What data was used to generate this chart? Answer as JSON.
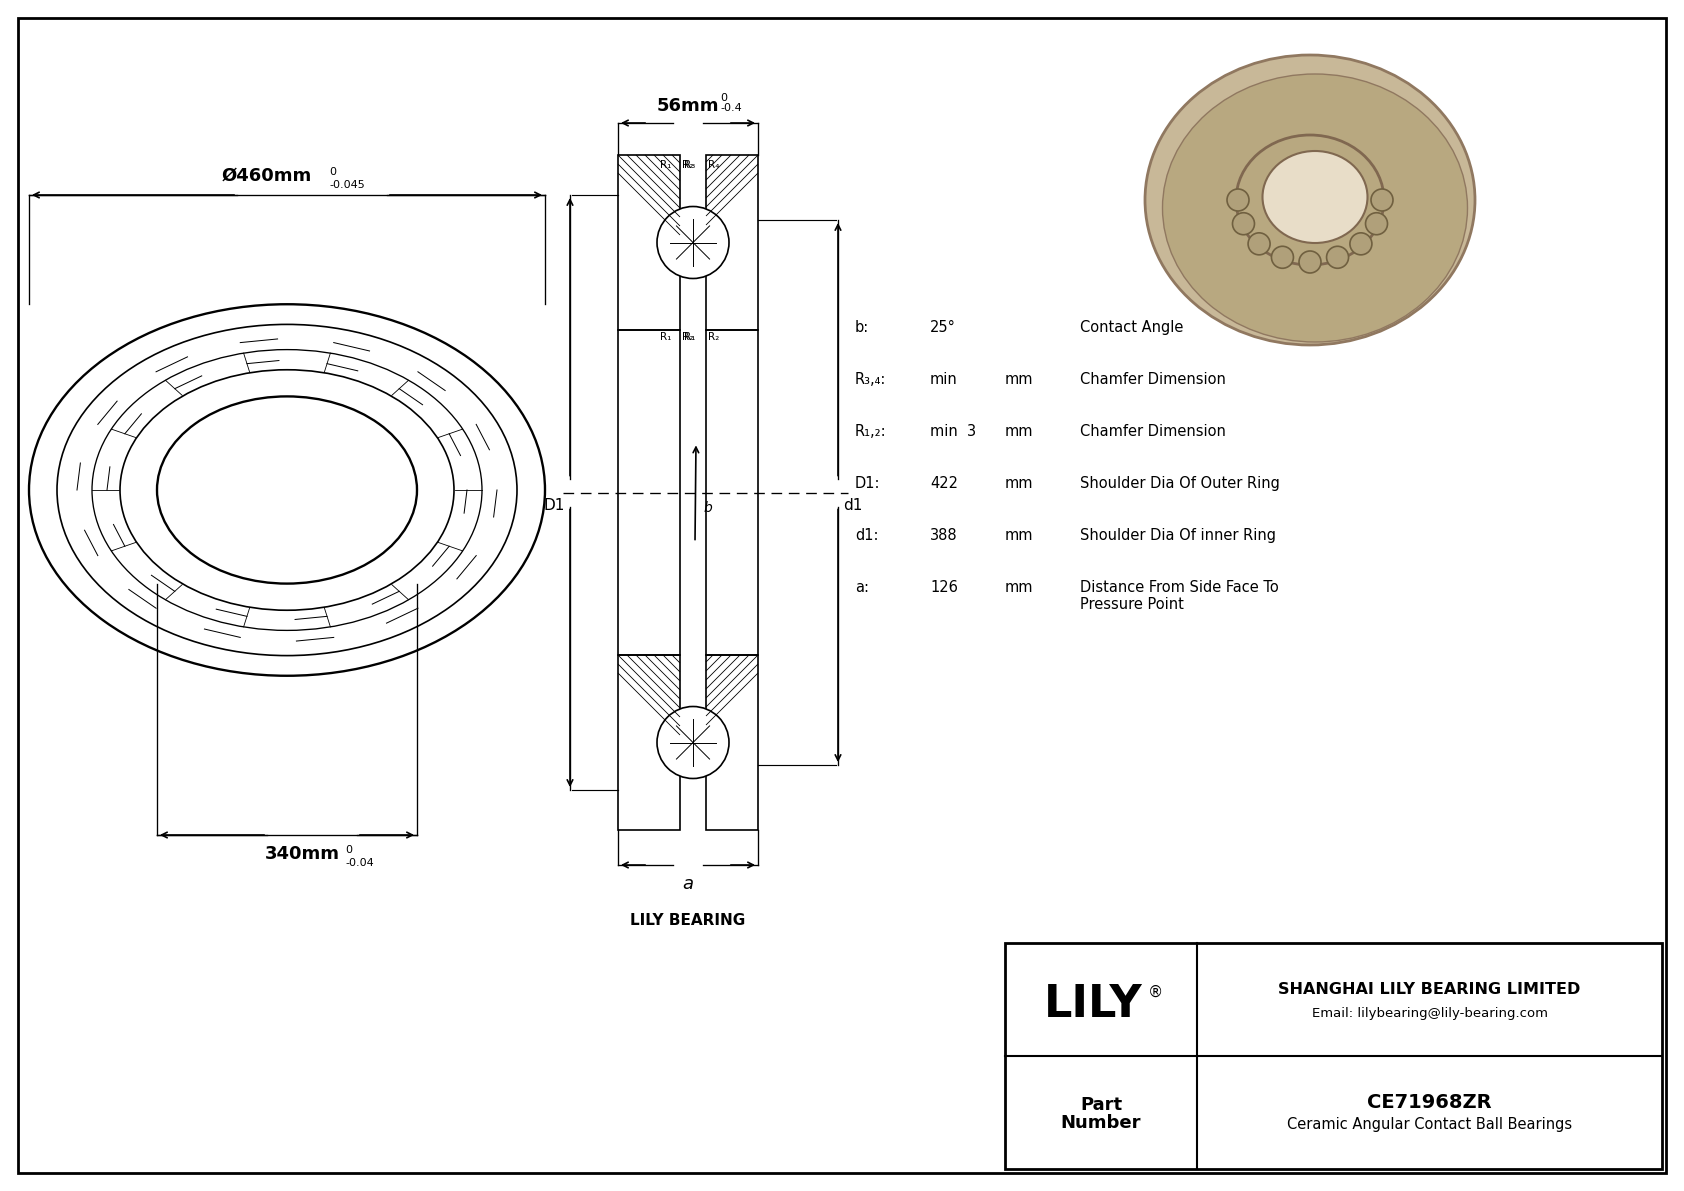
{
  "bg_color": "#ffffff",
  "lc": "#000000",
  "title": "CE71968ZR",
  "subtitle": "Ceramic Angular Contact Ball Bearings",
  "company": "SHANGHAI LILY BEARING LIMITED",
  "email": "Email: lilybearing@lily-bearing.com",
  "brand": "LILY",
  "reg": "®",
  "part_label_line1": "Part",
  "part_label_line2": "Number",
  "watermark": "LILY BEARING",
  "dim_a_label": "a",
  "dim_D1_label": "D1",
  "dim_d1_label": "d1",
  "dim_outer_label": "Ø460mm",
  "dim_outer_tol_top": "0",
  "dim_outer_tol_bot": "-0.045",
  "dim_inner_label": "340mm",
  "dim_inner_tol_top": "0",
  "dim_inner_tol_bot": "-0.04",
  "dim_width_label": "56mm",
  "dim_width_tol_top": "0",
  "dim_width_tol_bot": "-0.4",
  "specs": [
    {
      "label": "b:",
      "val": "25°",
      "unit": "",
      "desc": "Contact Angle"
    },
    {
      "label": "R₃,₄:",
      "val": "min",
      "unit": "mm",
      "desc": "Chamfer Dimension"
    },
    {
      "label": "R₁,₂:",
      "val": "min  3",
      "unit": "mm",
      "desc": "Chamfer Dimension"
    },
    {
      "label": "D1:",
      "val": "422",
      "unit": "mm",
      "desc": "Shoulder Dia Of Outer Ring"
    },
    {
      "label": "d1:",
      "val": "388",
      "unit": "mm",
      "desc": "Shoulder Dia Of inner Ring"
    },
    {
      "label": "a:",
      "val": "126",
      "unit": "mm",
      "desc": "Distance From Side Face To\nPressure Point"
    }
  ]
}
